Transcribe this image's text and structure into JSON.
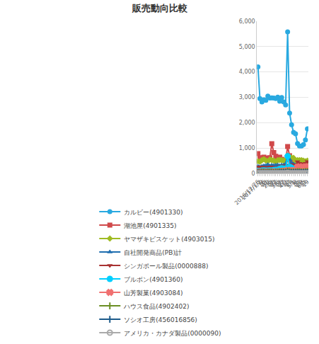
{
  "chart_data": {
    "type": "line",
    "title": "販売動向比較",
    "categories": [
      "2016/12/26",
      "2017/1/2",
      "9",
      "16",
      "23",
      "30",
      "2/6",
      "13",
      "20",
      "27",
      "3/6",
      "13",
      "20",
      "27",
      "4/3",
      "10",
      "17",
      "24",
      "5/1",
      "8",
      "15",
      "22",
      "29",
      "6/5",
      "12",
      "19"
    ],
    "ylim": [
      0,
      6000
    ],
    "yticks": [
      0,
      {
        "value": 1000,
        "label": "1,000"
      },
      {
        "value": 2000,
        "label": "2,000"
      },
      {
        "value": 3000,
        "label": "3,000"
      },
      {
        "value": 4000,
        "label": "4,000"
      },
      {
        "value": 5000,
        "label": "5,000"
      },
      {
        "value": 6000,
        "label": "6,000"
      }
    ],
    "grid": true,
    "legend": "bottom",
    "series": [
      {
        "name": "カルビー(4901330)",
        "color": "#29a9e0",
        "marker": "circle",
        "values": [
          4200,
          2950,
          2820,
          2900,
          2880,
          3050,
          2970,
          2980,
          2970,
          2950,
          3010,
          2850,
          2990,
          2820,
          2700,
          5580,
          2380,
          1920,
          1620,
          1560,
          1180,
          1080,
          1080,
          1140,
          1320,
          1760
        ]
      },
      {
        "name": "湖池屋(4901335)",
        "color": "#d0494a",
        "marker": "square",
        "values": [
          780,
          620,
          590,
          640,
          610,
          560,
          620,
          1170,
          820,
          680,
          600,
          640,
          560,
          520,
          520,
          1060,
          700,
          450,
          410,
          380,
          400,
          380,
          370,
          360,
          420,
          490
        ]
      },
      {
        "name": "ヤマザキビスケット(4903015)",
        "color": "#9fbb22",
        "marker": "diamond",
        "values": [
          480,
          460,
          520,
          560,
          510,
          480,
          550,
          520,
          510,
          460,
          520,
          530,
          520,
          500,
          520,
          700,
          650,
          620,
          610,
          480,
          520,
          520,
          520,
          500,
          470,
          500
        ]
      },
      {
        "name": "自社開発商品(PB)計",
        "color": "#1f6eb0",
        "marker": "triangle-up",
        "values": [
          280,
          260,
          280,
          300,
          310,
          340,
          290,
          320,
          310,
          320,
          330,
          300,
          330,
          320,
          380,
          720,
          550,
          410,
          360,
          330,
          330,
          310,
          290,
          300,
          300,
          300
        ]
      },
      {
        "name": "シンガポール製品(0000888)",
        "color": "#a83232",
        "marker": "triangle-down",
        "values": [
          260,
          240,
          250,
          240,
          240,
          230,
          250,
          250,
          220,
          230,
          240,
          270,
          280,
          300,
          280,
          320,
          320,
          350,
          330,
          300,
          460,
          400,
          370,
          370,
          400,
          470
        ]
      },
      {
        "name": "ブルボン(4901360)",
        "color": "#00cfff",
        "marker": "circle",
        "values": [
          100,
          90,
          110,
          120,
          110,
          110,
          120,
          110,
          130,
          140,
          130,
          180,
          200,
          190,
          190,
          680,
          260,
          220,
          160,
          150,
          190,
          200,
          180,
          200,
          200,
          220
        ]
      },
      {
        "name": "山芳製菓(4903084)",
        "color": "#f07070",
        "marker": "x",
        "values": [
          50,
          60,
          50,
          50,
          60,
          60,
          50,
          60,
          60,
          50,
          60,
          70,
          80,
          90,
          90,
          120,
          110,
          100,
          110,
          110,
          250,
          260,
          230,
          240,
          260,
          260
        ]
      },
      {
        "name": "ハウス食品(4902402)",
        "color": "#6b8e23",
        "marker": "cross-thin",
        "values": [
          40,
          40,
          50,
          50,
          40,
          50,
          50,
          50,
          40,
          50,
          50,
          60,
          60,
          60,
          60,
          90,
          70,
          60,
          60,
          60,
          70,
          70,
          60,
          60,
          70,
          70
        ]
      },
      {
        "name": "ソシオ工房(456016856)",
        "color": "#1c5a8a",
        "marker": "line-ns",
        "values": [
          20,
          20,
          20,
          20,
          20,
          20,
          20,
          20,
          20,
          20,
          20,
          30,
          30,
          30,
          30,
          40,
          30,
          30,
          30,
          30,
          30,
          30,
          30,
          30,
          30,
          30
        ]
      },
      {
        "name": "アメリカ・カナダ製品(0000090)",
        "color": "#aaaaaa",
        "marker": "circle-open",
        "values": [
          10,
          10,
          10,
          10,
          10,
          10,
          10,
          10,
          10,
          10,
          10,
          10,
          10,
          10,
          10,
          20,
          10,
          10,
          10,
          10,
          10,
          10,
          10,
          10,
          10,
          10
        ]
      }
    ]
  }
}
